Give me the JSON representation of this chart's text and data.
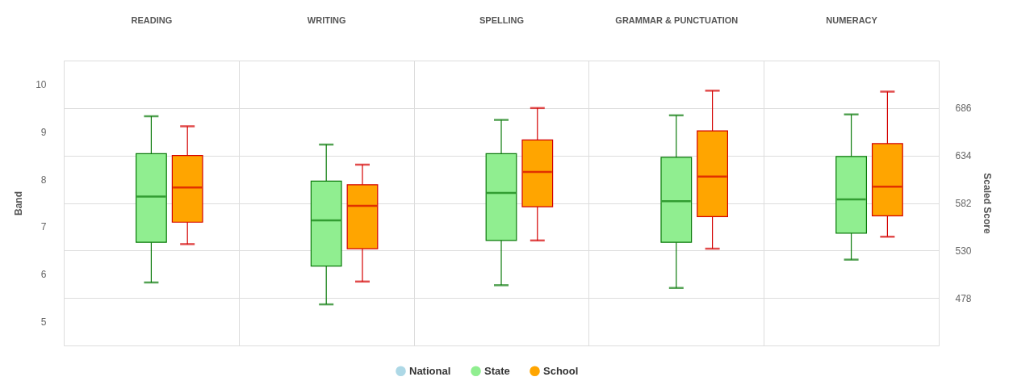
{
  "chart_data": {
    "type": "box",
    "categories": [
      "READING",
      "WRITING",
      "SPELLING",
      "GRAMMAR & PUNCTUATION",
      "NUMERACY"
    ],
    "ylabel": "Band",
    "y2label": "Scaled Score",
    "ylim": [
      4.5,
      10.5
    ],
    "yticks": [
      5,
      6,
      7,
      8,
      9,
      10
    ],
    "y2lim": [
      426,
      738
    ],
    "y2ticks": [
      478,
      530,
      582,
      634,
      686
    ],
    "grid": true,
    "legend": "bottom",
    "series": [
      {
        "name": "National",
        "color": "#add8e6",
        "boxes": [
          null,
          null,
          null,
          null,
          null
        ]
      },
      {
        "name": "State",
        "color": "#90ee90",
        "axis": "y2",
        "boxes": [
          {
            "low": 495,
            "q1": 539,
            "median": 589,
            "q3": 636,
            "high": 677
          },
          {
            "low": 471,
            "q1": 513,
            "median": 563,
            "q3": 606,
            "high": 646
          },
          {
            "low": 492,
            "q1": 541,
            "median": 593,
            "q3": 636,
            "high": 673
          },
          {
            "low": 489,
            "q1": 539,
            "median": 584,
            "q3": 632,
            "high": 678
          },
          {
            "low": 520,
            "q1": 549,
            "median": 586,
            "q3": 633,
            "high": 679
          }
        ]
      },
      {
        "name": "School",
        "color": "#ffa500",
        "axis": "y2",
        "boxes": [
          {
            "low": 537,
            "q1": 561,
            "median": 599,
            "q3": 634,
            "high": 666
          },
          {
            "low": 496,
            "q1": 532,
            "median": 579,
            "q3": 602,
            "high": 624
          },
          {
            "low": 541,
            "q1": 578,
            "median": 616,
            "q3": 651,
            "high": 686
          },
          {
            "low": 532,
            "q1": 567,
            "median": 611,
            "q3": 661,
            "high": 705
          },
          {
            "low": 545,
            "q1": 568,
            "median": 600,
            "q3": 647,
            "high": 704
          }
        ]
      }
    ]
  }
}
